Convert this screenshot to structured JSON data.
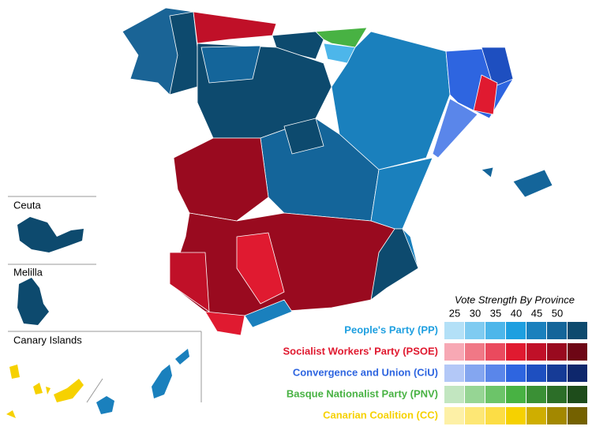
{
  "insets": [
    "Ceuta",
    "Melilla",
    "Canary Islands"
  ],
  "legend": {
    "title": "Vote Strength By Province",
    "thresholds": [
      25,
      30,
      35,
      40,
      45,
      50
    ],
    "parties": [
      {
        "name": "People's Party (PP)",
        "color": "#1e9fe0",
        "colors": [
          "#b3e0f7",
          "#7fcbf1",
          "#4db6ea",
          "#1e9fe0",
          "#1a80bd",
          "#14659a",
          "#0d4a6e"
        ]
      },
      {
        "name": "Socialist Workers' Party (PSOE)",
        "color": "#e01a30",
        "colors": [
          "#f7a8b4",
          "#f07886",
          "#ea4a5e",
          "#e01a30",
          "#c01028",
          "#990a1f",
          "#6d0615"
        ]
      },
      {
        "name": "Convergence and Union (CiU)",
        "color": "#2e65e0",
        "colors": [
          "#b3c8f7",
          "#84a6f0",
          "#5a86ea",
          "#2e65e0",
          "#1e4fc0",
          "#163b96",
          "#0e276c"
        ]
      },
      {
        "name": "Basque Nationalist Party (PNV)",
        "color": "#48b243",
        "colors": [
          "#c2e6c0",
          "#96d594",
          "#6cc469",
          "#48b243",
          "#3a9035",
          "#2c6e28",
          "#1e4c1b"
        ]
      },
      {
        "name": "Canarian Coalition (CC)",
        "color": "#f6d100",
        "colors": [
          "#fdf0a6",
          "#fde775",
          "#fcdd45",
          "#f6d100",
          "#cfae00",
          "#a38800",
          "#746100"
        ]
      }
    ]
  }
}
